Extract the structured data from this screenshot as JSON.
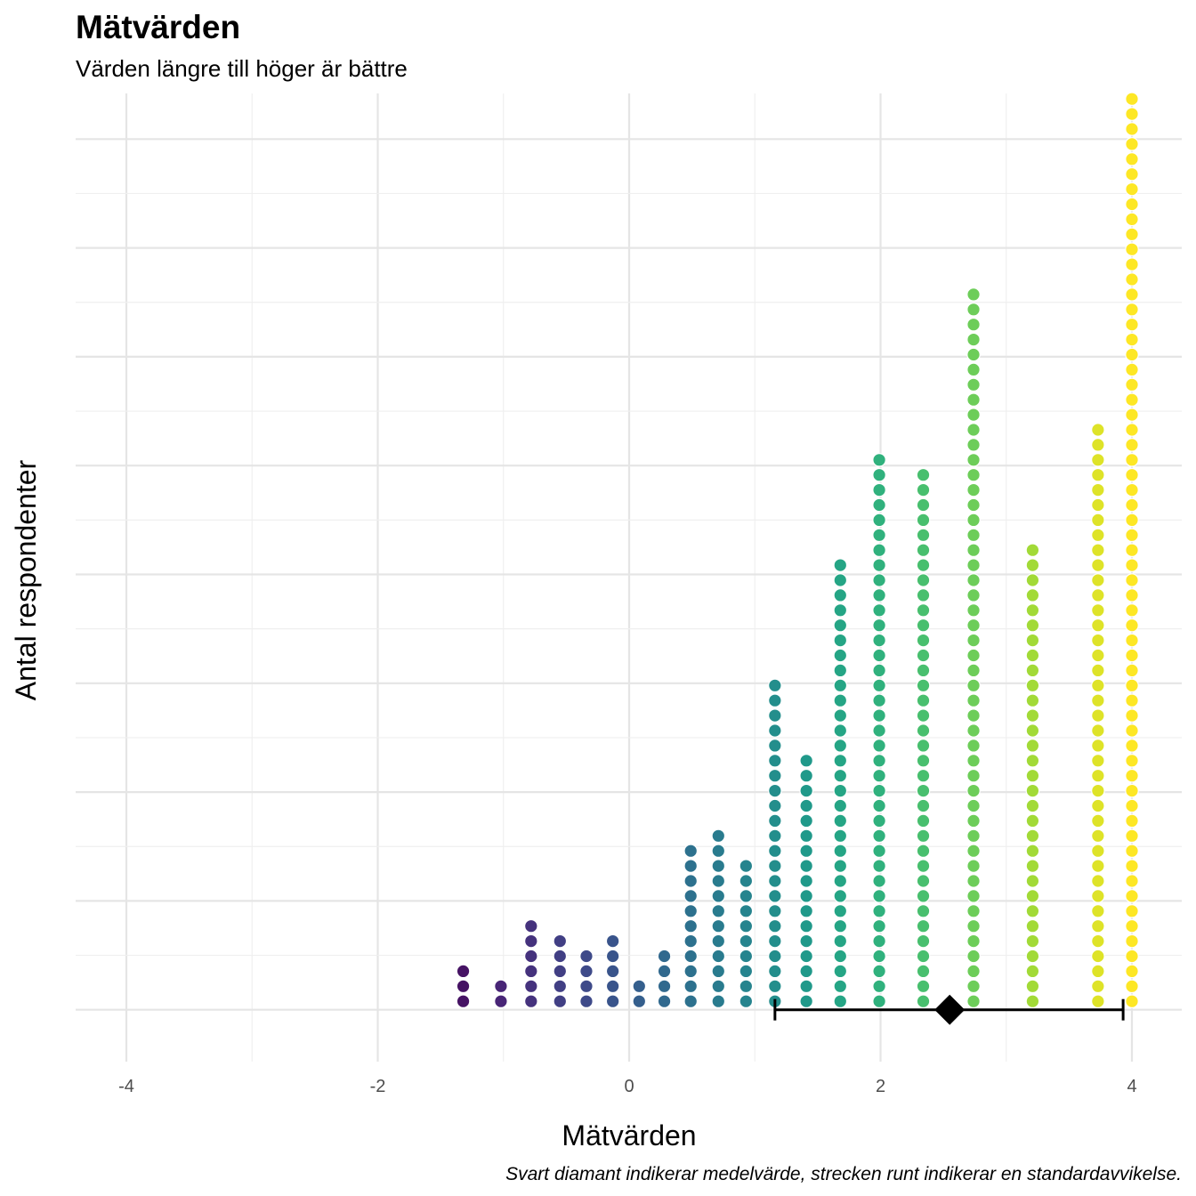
{
  "chart_data": {
    "type": "dotplot",
    "title": "Mätvärden",
    "subtitle": "Värden längre till höger är bättre",
    "xlabel": "Mätvärden",
    "ylabel": "Antal respondenter",
    "caption": "Svart diamant indikerar medelvärde, strecken runt indikerar en standardavvikelse.",
    "xlim": [
      -4.4,
      4.4
    ],
    "x_ticks": [
      "-4",
      "-2",
      "0",
      "2",
      "4"
    ],
    "x_tick_values": [
      -4,
      -2,
      0,
      2,
      4
    ],
    "grid": true,
    "color_scale": "viridis",
    "bins": [
      {
        "x": -1.32,
        "count": 3
      },
      {
        "x": -1.02,
        "count": 2
      },
      {
        "x": -0.78,
        "count": 6
      },
      {
        "x": -0.55,
        "count": 5
      },
      {
        "x": -0.34,
        "count": 4
      },
      {
        "x": -0.13,
        "count": 5
      },
      {
        "x": 0.08,
        "count": 2
      },
      {
        "x": 0.28,
        "count": 4
      },
      {
        "x": 0.49,
        "count": 11
      },
      {
        "x": 0.71,
        "count": 12
      },
      {
        "x": 0.93,
        "count": 10
      },
      {
        "x": 1.16,
        "count": 22
      },
      {
        "x": 1.41,
        "count": 17
      },
      {
        "x": 1.68,
        "count": 30
      },
      {
        "x": 1.99,
        "count": 37
      },
      {
        "x": 2.34,
        "count": 36
      },
      {
        "x": 2.74,
        "count": 48
      },
      {
        "x": 3.21,
        "count": 31
      },
      {
        "x": 3.73,
        "count": 39
      },
      {
        "x": 4.0,
        "count": 61
      }
    ],
    "mean": 2.55,
    "sd_low": 1.16,
    "sd_high": 3.93
  }
}
